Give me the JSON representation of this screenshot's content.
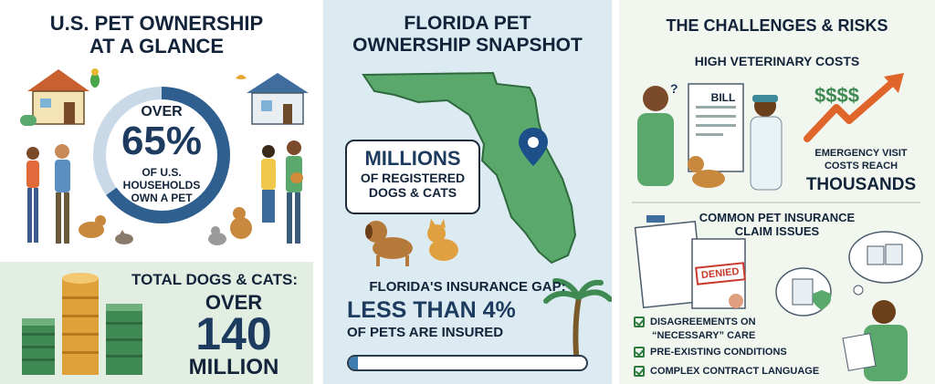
{
  "panel1": {
    "title_line1": "U.S. PET OWNERSHIP",
    "title_line2": "AT A GLANCE",
    "stat_line1": "OVER",
    "stat_value": "65%",
    "stat_line3": "OF U.S.",
    "stat_line4": "HOUSEHOLDS",
    "stat_line5": "OWN A PET",
    "stat_fraction": 0.65,
    "total_label": "TOTAL DOGS & CATS:",
    "total_over": "OVER",
    "total_value": "140",
    "total_unit": "MILLION"
  },
  "panel2": {
    "title_line1": "FLORIDA PET",
    "title_line2": "OWNERSHIP SNAPSHOT",
    "bubble_line1": "MILLIONS",
    "bubble_line2": "OF REGISTERED",
    "bubble_line3": "DOGS & CATS",
    "gap_title": "FLORIDA'S INSURANCE GAP:",
    "gap_value": "LESS THAN 4%",
    "gap_desc": "OF PETS ARE INSURED",
    "gap_fraction": 0.04
  },
  "panel3": {
    "title": "THE CHALLENGES & RISKS",
    "vet_title": "HIGH VETERINARY COSTS",
    "bill_label": "BILL",
    "cost_symbol": "$$$$",
    "emergency_line1": "EMERGENCY VISIT",
    "emergency_line2": "COSTS REACH",
    "emergency_value": "THOUSANDS",
    "claims_title_line1": "COMMON PET INSURANCE",
    "claims_title_line2": "CLAIM ISSUES",
    "denied_stamp": "DENIED",
    "issues": [
      "DISAGREEMENTS ON",
      "“NECESSARY” CARE",
      "PRE-EXISTING CONDITIONS",
      "COMPLEX CONTRACT LANGUAGE"
    ]
  },
  "colors": {
    "navy": "#1d3b5e",
    "ring_blue": "#2f5f8f",
    "ring_light": "#c9d9e8",
    "florida_green": "#5aa86b",
    "money_green": "#3f8a52",
    "arrow_orange": "#e0652b",
    "denied_red": "#c8392b"
  }
}
